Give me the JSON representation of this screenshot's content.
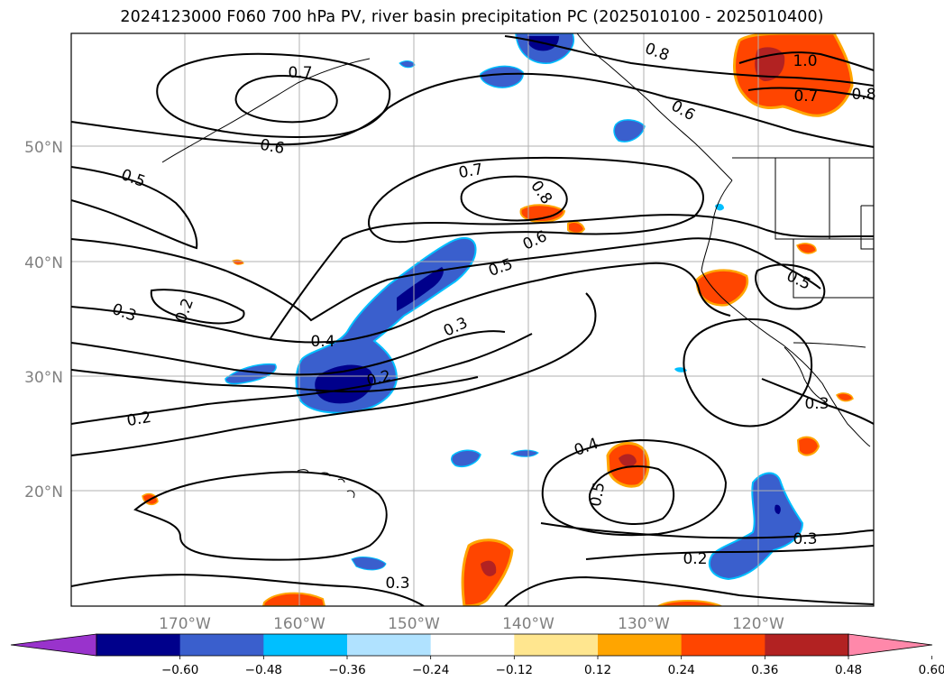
{
  "title": "2024123000 F060 700 hPa PV, river basin precipitation PC (2025010100 - 2025010400)",
  "lat_labels": [
    "50°N",
    "40°N",
    "30°N",
    "20°N"
  ],
  "lon_labels": [
    "170°W",
    "160°W",
    "150°W",
    "140°W",
    "130°W",
    "120°W"
  ],
  "contour_labels": [
    "0.7",
    "0.8",
    "0.6",
    "0.5",
    "0.7",
    "0.8",
    "0.6",
    "0.5",
    "0.4",
    "0.3",
    "0.3",
    "0.2",
    "0.2",
    "0.2",
    "0.4",
    "0.5",
    "0.3",
    "0.2",
    "0.3",
    "1.0",
    "0.7",
    "0.8",
    "0.6",
    "0.5",
    "0.3"
  ],
  "colorbar": {
    "ticks": [
      "−0.60",
      "−0.48",
      "−0.36",
      "−0.24",
      "−0.12",
      "0.12",
      "0.24",
      "0.36",
      "0.48",
      "0.60"
    ],
    "colors": [
      "#9933cc",
      "#00008b",
      "#3a5fcd",
      "#00bfff",
      "#b0e2ff",
      "#ffffff",
      "#ffe68f",
      "#ffa500",
      "#ff4500",
      "#b22222",
      "#ff88aa"
    ]
  },
  "colors": {
    "deep_blue": "#00008b",
    "mid_blue": "#3a5fcd",
    "light_blue": "#00bfff",
    "pale_blue": "#b0e2ff",
    "pale_yellow": "#ffe68f",
    "orange": "#ffa500",
    "red_orange": "#ff4500",
    "dark_red": "#b22222",
    "grid": "#b0b0b0"
  }
}
